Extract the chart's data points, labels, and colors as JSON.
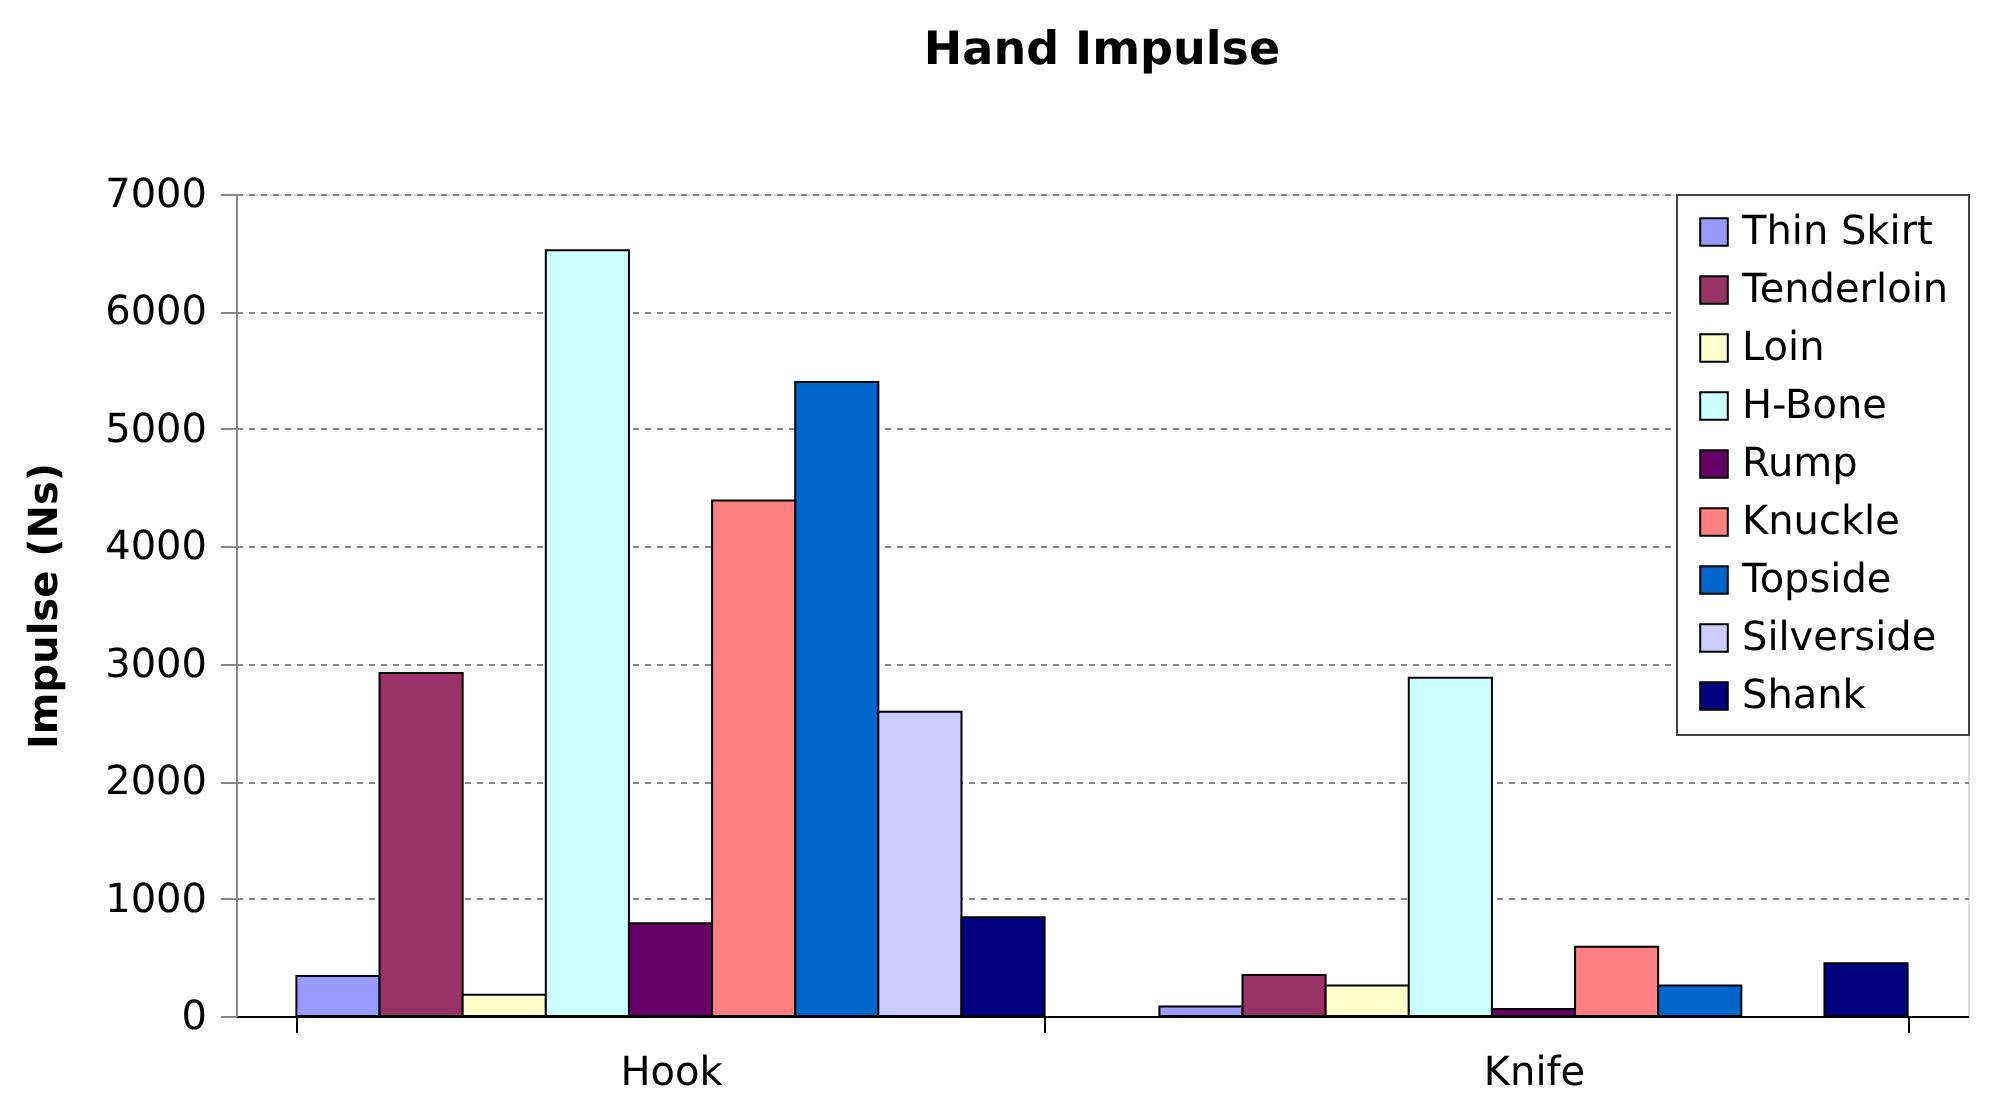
{
  "chart_data": {
    "type": "bar",
    "title": "Hand Impulse",
    "ylabel": "Impulse (Ns)",
    "categories": [
      "Hook",
      "Knife"
    ],
    "series": [
      {
        "name": "Thin Skirt",
        "color": "#9999ff",
        "values": [
          340,
          80
        ]
      },
      {
        "name": "Tenderloin",
        "color": "#993366",
        "values": [
          2920,
          350
        ]
      },
      {
        "name": "Loin",
        "color": "#ffffcc",
        "values": [
          180,
          260
        ]
      },
      {
        "name": "H-Bone",
        "color": "#ccffff",
        "values": [
          6520,
          2880
        ]
      },
      {
        "name": "Rump",
        "color": "#660066",
        "values": [
          790,
          60
        ]
      },
      {
        "name": "Knuckle",
        "color": "#ff8080",
        "values": [
          4390,
          590
        ]
      },
      {
        "name": "Topside",
        "color": "#0066cc",
        "values": [
          5400,
          260
        ]
      },
      {
        "name": "Silverside",
        "color": "#ccccff",
        "values": [
          2590,
          null
        ]
      },
      {
        "name": "Shank",
        "color": "#000080",
        "values": [
          840,
          450
        ]
      }
    ],
    "ylim": [
      0,
      7000
    ],
    "yticks": [
      0,
      1000,
      2000,
      3000,
      4000,
      5000,
      6000,
      7000
    ],
    "grid": "y",
    "legend": "top right"
  }
}
